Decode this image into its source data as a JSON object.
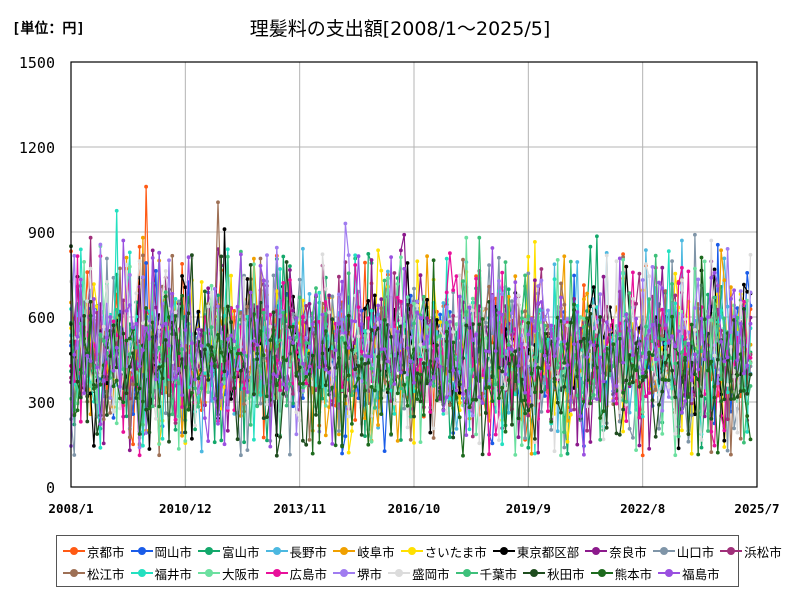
{
  "chart_data": {
    "type": "line",
    "title": "理髪料の支出額[2008/1～2025/5]",
    "unit_label": "[単位：円]",
    "xlabel": "",
    "ylabel": "",
    "x_start": "2008-01",
    "x_end": "2025-07",
    "ylim": [
      0,
      1500
    ],
    "yticks": [
      "0",
      "300",
      "600",
      "900",
      "1200",
      "1500"
    ],
    "xticks": [
      "2008/1",
      "2010/12",
      "2013/11",
      "2016/10",
      "2019/9",
      "2022/8",
      "2025/7"
    ],
    "grid": true,
    "legend_position": "bottom",
    "note": "20 monthly series, 2008/1–2025/5. Individual monthly values are not labeled; series are summarised by their visible envelope (min, max, typical level). Peak values read from gridlines.",
    "series": [
      {
        "name": "京都市",
        "color": "#ff5a14",
        "typical": 470,
        "peak": 1060,
        "peak_at": "2009-12"
      },
      {
        "name": "岡山市",
        "color": "#1a5ce8",
        "typical": 460,
        "peak": 855,
        "peak_at": "2024-07"
      },
      {
        "name": "富山市",
        "color": "#13a86b",
        "typical": 470,
        "peak": 885,
        "peak_at": "2021-06"
      },
      {
        "name": "長野市",
        "color": "#4cb8e0",
        "typical": 470,
        "peak": 870,
        "peak_at": "2023-08"
      },
      {
        "name": "岐阜市",
        "color": "#f0a000",
        "typical": 460,
        "peak": 880,
        "peak_at": "2009-11"
      },
      {
        "name": "さいたま市",
        "color": "#ffe000",
        "typical": 470,
        "peak": 865,
        "peak_at": "2019-11"
      },
      {
        "name": "東京都区部",
        "color": "#000000",
        "typical": 480,
        "peak": 910,
        "peak_at": "2011-12"
      },
      {
        "name": "奈良市",
        "color": "#8c1a8c",
        "typical": 480,
        "peak": 890,
        "peak_at": "2016-07"
      },
      {
        "name": "山口市",
        "color": "#7f95a8",
        "typical": 450,
        "peak": 890,
        "peak_at": "2023-12"
      },
      {
        "name": "浜松市",
        "color": "#a0307a",
        "typical": 470,
        "peak": 880,
        "peak_at": "2008-07"
      },
      {
        "name": "松江市",
        "color": "#9e7055",
        "typical": 470,
        "peak": 1005,
        "peak_at": "2011-10"
      },
      {
        "name": "福井市",
        "color": "#23e0c0",
        "typical": 460,
        "peak": 975,
        "peak_at": "2009-03"
      },
      {
        "name": "大阪市",
        "color": "#6ce0a0",
        "typical": 470,
        "peak": 880,
        "peak_at": "2018-02"
      },
      {
        "name": "広島市",
        "color": "#e8109a",
        "typical": 460,
        "peak": 825,
        "peak_at": "2017-09"
      },
      {
        "name": "堺市",
        "color": "#a07cf0",
        "typical": 480,
        "peak": 930,
        "peak_at": "2015-01"
      },
      {
        "name": "盛岡市",
        "color": "#dcdcdc",
        "typical": 460,
        "peak": 870,
        "peak_at": "2024-05"
      },
      {
        "name": "千葉市",
        "color": "#3ec07a",
        "typical": 460,
        "peak": 880,
        "peak_at": "2018-06"
      },
      {
        "name": "秋田市",
        "color": "#1f4d1f",
        "typical": 440,
        "peak": 850,
        "peak_at": "2008-01"
      },
      {
        "name": "熊本市",
        "color": "#1e6b1e",
        "typical": 430,
        "peak": 810,
        "peak_at": "2024-02"
      },
      {
        "name": "福島市",
        "color": "#9a50e0",
        "typical": 480,
        "peak": 870,
        "peak_at": "2009-05"
      }
    ]
  }
}
